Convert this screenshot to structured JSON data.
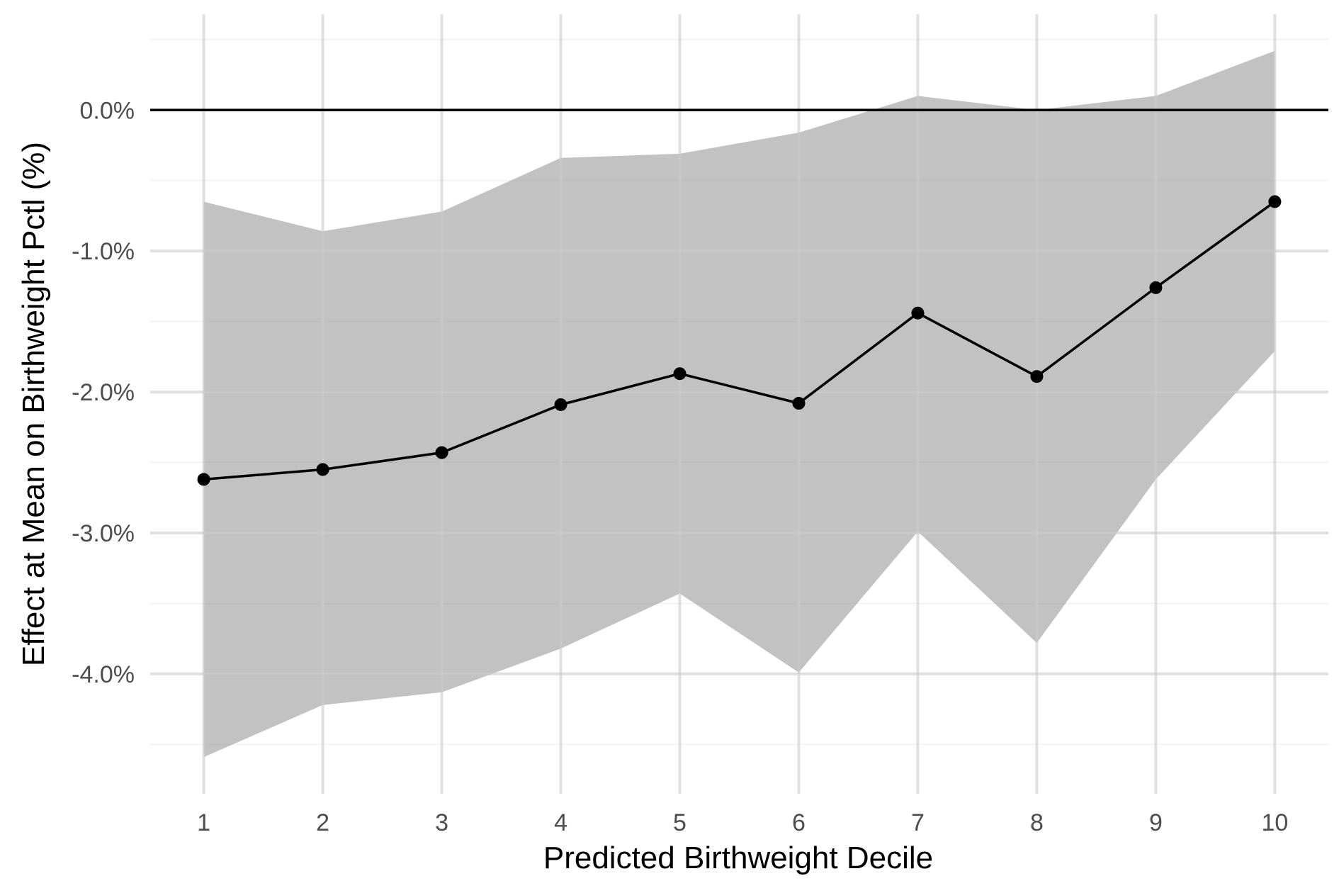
{
  "chart_data": {
    "type": "line",
    "title": "",
    "xlabel": "Predicted Birthweight Decile",
    "ylabel": "Effect at Mean on Birthweight Pctl (%)",
    "x": [
      1,
      2,
      3,
      4,
      5,
      6,
      7,
      8,
      9,
      10
    ],
    "x_tick_labels": [
      "1",
      "2",
      "3",
      "4",
      "5",
      "6",
      "7",
      "8",
      "9",
      "10"
    ],
    "y_ticks": [
      0.0,
      -1.0,
      -2.0,
      -3.0,
      -4.0
    ],
    "y_tick_labels": [
      "0.0%",
      "-1.0%",
      "-2.0%",
      "-3.0%",
      "-4.0%"
    ],
    "xlim": [
      0.55,
      10.45
    ],
    "ylim": [
      -4.85,
      0.68
    ],
    "grid": true,
    "reference_line_y": 0.0,
    "series": [
      {
        "values": [
          -2.62,
          -2.55,
          -2.43,
          -2.09,
          -1.87,
          -2.08,
          -1.44,
          -1.89,
          -1.26,
          -0.65
        ],
        "ci_lower": [
          -4.59,
          -4.22,
          -4.13,
          -3.82,
          -3.43,
          -3.99,
          -2.99,
          -3.78,
          -2.62,
          -1.71
        ],
        "ci_upper": [
          -0.65,
          -0.86,
          -0.72,
          -0.34,
          -0.31,
          -0.16,
          0.1,
          0.0,
          0.1,
          0.42
        ],
        "line_color": "#000000",
        "ribbon_color": "#999999"
      }
    ]
  }
}
